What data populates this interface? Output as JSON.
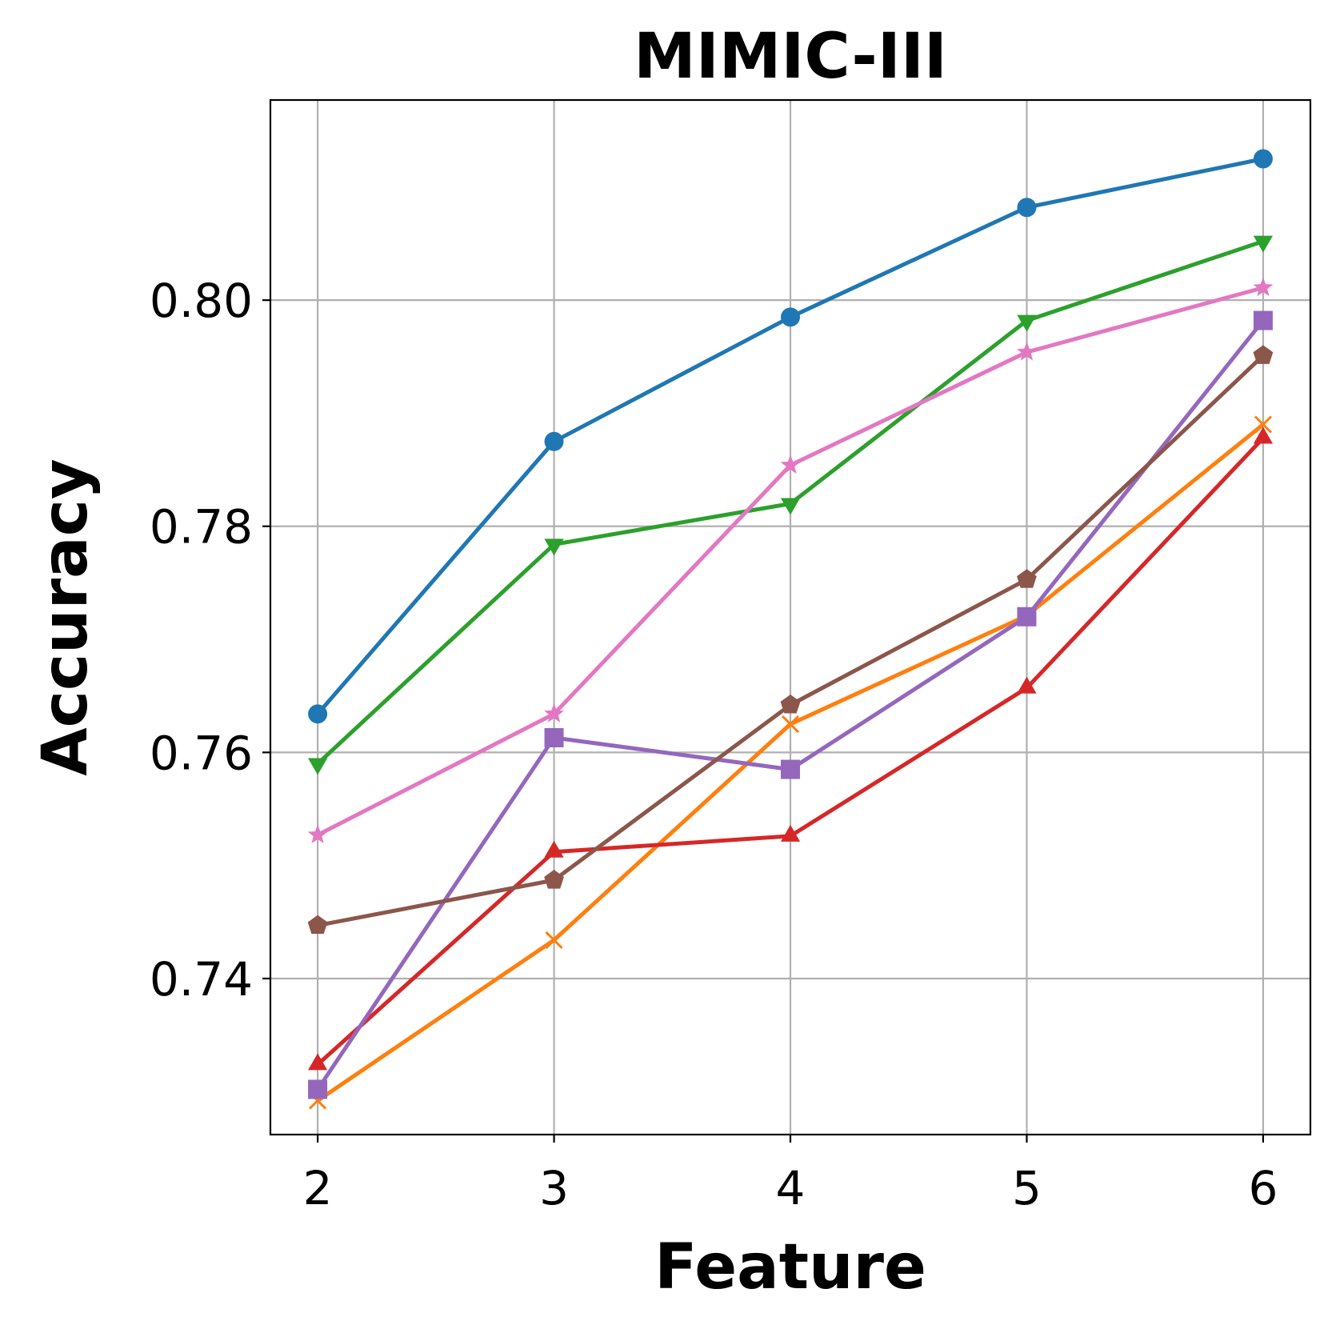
{
  "chart_data": {
    "type": "line",
    "title": "MIMIC-III",
    "xlabel": "Feature",
    "ylabel": "Accuracy",
    "x": [
      2,
      3,
      4,
      5,
      6
    ],
    "xlim": [
      1.8,
      6.2
    ],
    "ylim": [
      0.7262,
      0.8177
    ],
    "xticks": [
      2,
      3,
      4,
      5,
      6
    ],
    "yticks": [
      0.74,
      0.76,
      0.78,
      0.8
    ],
    "ytick_labels": [
      "0.74",
      "0.76",
      "0.78",
      "0.80"
    ],
    "grid": true,
    "series": [
      {
        "marker": "circle",
        "color": "#1f77b4",
        "values": [
          0.7634,
          0.7875,
          0.7985,
          0.8082,
          0.8125
        ]
      },
      {
        "marker": "x",
        "color": "#ff7f0e",
        "values": [
          0.7292,
          0.7434,
          0.7625,
          0.7721,
          0.789
        ]
      },
      {
        "marker": "triangle-down",
        "color": "#2ca02c",
        "values": [
          0.759,
          0.7784,
          0.782,
          0.7982,
          0.8052
        ]
      },
      {
        "marker": "triangle-up",
        "color": "#d62728",
        "values": [
          0.7324,
          0.7512,
          0.7526,
          0.7657,
          0.7878
        ]
      },
      {
        "marker": "square",
        "color": "#9467bd",
        "values": [
          0.7302,
          0.7613,
          0.7585,
          0.772,
          0.7982
        ]
      },
      {
        "marker": "pentagon",
        "color": "#8c564b",
        "values": [
          0.7447,
          0.7487,
          0.7642,
          0.7753,
          0.7951
        ]
      },
      {
        "marker": "star",
        "color": "#e377c2",
        "values": [
          0.7527,
          0.7634,
          0.7854,
          0.7954,
          0.8011
        ]
      }
    ]
  }
}
